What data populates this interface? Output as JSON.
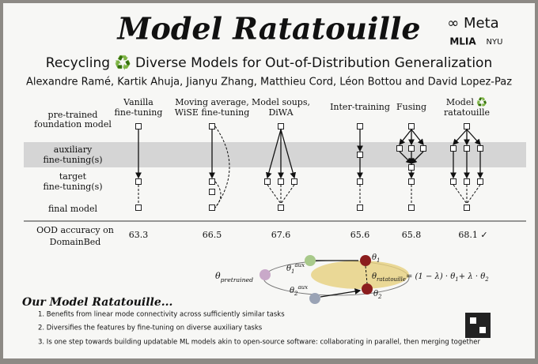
{
  "header": {
    "title": "Model Ratatouille",
    "subtitle": "Recycling ♻️ Diverse Models for Out-of-Distribution Generalization",
    "authors": "Alexandre Ramé, Kartik Ahuja, Jianyu Zhang, Matthieu Cord, Léon Bottou and David Lopez-Paz",
    "logos": [
      "∞ Meta",
      "MLIA",
      "NYU"
    ]
  },
  "table": {
    "columns": [
      [
        "Vanilla",
        "fine-tuning"
      ],
      [
        "Moving average,",
        "WiSE fine-tuning"
      ],
      [
        "Model soups,",
        "DiWA"
      ],
      [
        "Inter-training"
      ],
      [
        "Fusing"
      ],
      [
        "Model ♻️",
        "ratatouille"
      ]
    ],
    "rows": [
      [
        "pre-trained",
        "foundation model"
      ],
      [
        "auxiliary",
        "fine-tuning(s)"
      ],
      [
        "target",
        "fine-tuning(s)"
      ],
      [
        "final model"
      ]
    ],
    "metric": [
      "OOD accuracy on",
      "DomainBed"
    ],
    "accuracies": [
      "63.3",
      "66.5",
      "67.6",
      "65.6",
      "65.8",
      "68.1 ✓"
    ]
  },
  "diagram": {
    "pretrained": [
      "θ",
      "pretrained"
    ],
    "aux1": [
      "θ",
      "1",
      "aux"
    ],
    "aux2": [
      "θ",
      "2",
      "aux"
    ],
    "theta1": [
      "θ",
      "1"
    ],
    "theta2": [
      "θ",
      "2"
    ],
    "formula": [
      "θ",
      "ratatouille",
      "= (1 − λ) · θ",
      "1",
      "+ λ · θ",
      "2"
    ]
  },
  "summary": {
    "title": "Our Model Ratatouille...",
    "items": [
      "1. Benefits from linear mode connectivity across sufficiently similar tasks",
      "2. Diversifies the features by fine-tuning on diverse auxiliary tasks",
      "3. Is one step towards building updatable ML models akin to open-source software: collaborating in parallel, then merging together"
    ]
  }
}
